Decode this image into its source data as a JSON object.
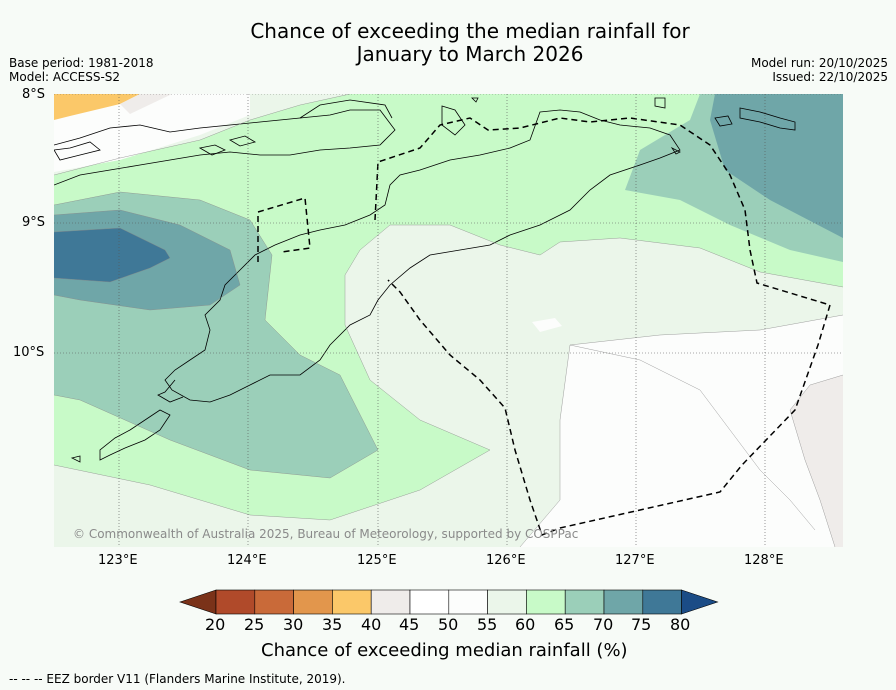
{
  "title": {
    "line1": "Chance of exceeding the median rainfall for",
    "line2": "January to March 2026"
  },
  "meta_left": {
    "base_period": "Base period: 1981-2018",
    "model": "Model: ACCESS-S2"
  },
  "meta_right": {
    "model_run": "Model run: 20/10/2025",
    "issued": "Issued: 22/10/2025"
  },
  "map": {
    "lat_labels": [
      "8°S",
      "9°S",
      "10°S"
    ],
    "lon_labels": [
      "123°E",
      "124°E",
      "125°E",
      "126°E",
      "127°E",
      "128°E"
    ],
    "copyright": "© Commonwealth of Australia 2025, Bureau of Meteorology, supported by COSPPac"
  },
  "colorbar": {
    "title": "Chance of exceeding median rainfall (%)",
    "ticks": [
      "20",
      "25",
      "30",
      "35",
      "40",
      "45",
      "50",
      "55",
      "60",
      "65",
      "70",
      "75",
      "80"
    ],
    "colors": [
      "#7a3219",
      "#b04a2a",
      "#c96a39",
      "#e2964c",
      "#fbc869",
      "#efecea",
      "#ffffff",
      "#fcfdfc",
      "#ebf6ea",
      "#c8fac8",
      "#9bcfb9",
      "#6fa6a8",
      "#3f7897",
      "#1b4c86"
    ]
  },
  "footer": "--  --  -- EEZ border V11 (Flanders Marine Institute, 2019)."
}
